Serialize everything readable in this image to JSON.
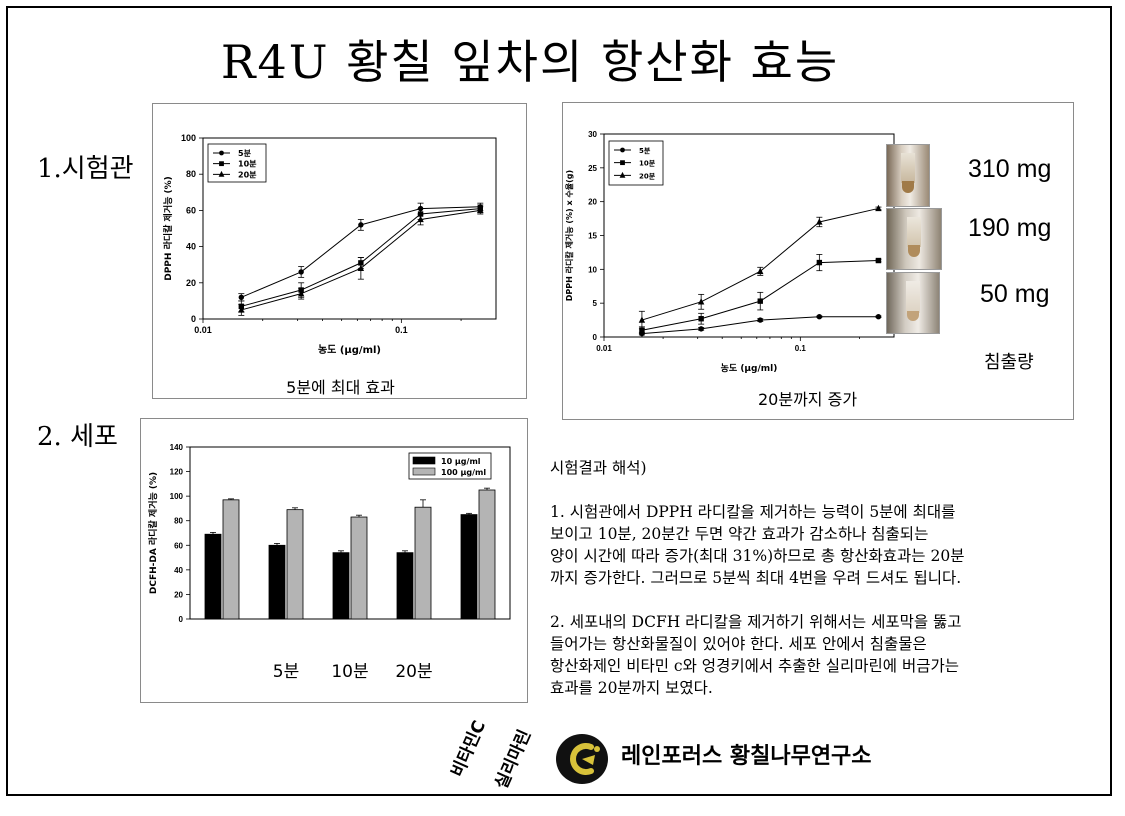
{
  "title": "R4U 황칠 잎차의 항산화 효능",
  "sections": {
    "s1": "1.시험관",
    "s2": "2. 세포"
  },
  "chart_data": [
    {
      "type": "line",
      "id": "dpph_scavenging",
      "xlabel": "농도 (μg/ml)",
      "ylabel": "DPPH 라디칼 제거능 (%)",
      "xscale": "log",
      "xlim": [
        0.01,
        0.3
      ],
      "ylim": [
        0,
        100
      ],
      "x_ticks": [
        "0.01",
        "0.1"
      ],
      "y_ticks": [
        "0",
        "20",
        "40",
        "60",
        "80",
        "100"
      ],
      "legend": "top-left",
      "x": [
        0.0156,
        0.03125,
        0.0625,
        0.125,
        0.25
      ],
      "series": [
        {
          "name": "5분",
          "marker": "circle",
          "values": [
            12,
            26,
            52,
            61,
            62
          ],
          "errors": [
            2,
            3,
            3,
            3,
            2
          ]
        },
        {
          "name": "10분",
          "marker": "square",
          "values": [
            7,
            16,
            31,
            58,
            61
          ],
          "errors": [
            3,
            4,
            3,
            3,
            2
          ]
        },
        {
          "name": "20분",
          "marker": "triangle",
          "values": [
            5,
            14,
            28,
            55,
            60
          ],
          "errors": [
            3,
            3,
            6,
            3,
            2
          ]
        }
      ],
      "caption": "5분에 최대 효과"
    },
    {
      "type": "line",
      "id": "dpph_cumulative",
      "xlabel": "농도 (μg/ml)",
      "ylabel": "DPPH 라디칼 제거능 (%) x 수율(g)",
      "xscale": "log",
      "xlim": [
        0.01,
        0.3
      ],
      "ylim": [
        0,
        30
      ],
      "x_ticks": [
        "0.01",
        "0.1"
      ],
      "y_ticks": [
        "0",
        "5",
        "10",
        "15",
        "20",
        "25",
        "30"
      ],
      "legend": "top-left",
      "x": [
        0.0156,
        0.03125,
        0.0625,
        0.125,
        0.25
      ],
      "series": [
        {
          "name": "5분",
          "marker": "circle",
          "values": [
            0.5,
            1.2,
            2.5,
            3,
            3
          ],
          "errors": [
            0.2,
            0.2,
            0.2,
            0.1,
            0.1
          ]
        },
        {
          "name": "10분",
          "marker": "square",
          "values": [
            1,
            2.7,
            5.3,
            11,
            11.3
          ],
          "errors": [
            0.5,
            0.8,
            1.3,
            1.2,
            0.2
          ]
        },
        {
          "name": "20분",
          "marker": "triangle",
          "values": [
            2.5,
            5.2,
            9.7,
            17,
            19
          ],
          "errors": [
            1.3,
            1.1,
            0.6,
            0.7,
            0.2
          ]
        }
      ],
      "caption": "20분까지 증가"
    },
    {
      "type": "bar",
      "id": "dcfh_cell",
      "ylabel": "DCFH-DA 라디칼 제거능 (%)",
      "ylim": [
        0,
        140
      ],
      "y_ticks": [
        "0",
        "20",
        "40",
        "60",
        "80",
        "100",
        "120",
        "140"
      ],
      "legend": "top-right",
      "categories": [
        "비타민C",
        "5분",
        "10분",
        "20분",
        "실리마린"
      ],
      "visible_category_labels": [
        "5분",
        "10분",
        "20분"
      ],
      "series": [
        {
          "name": "10 μg/ml",
          "color": "#000000",
          "values": [
            69,
            60,
            54,
            54,
            85
          ],
          "errors": [
            1.5,
            1.5,
            1.5,
            1.5,
            1
          ]
        },
        {
          "name": "100 μg/ml",
          "color": "#b4b4b4",
          "values": [
            97,
            89,
            83,
            91,
            105
          ],
          "errors": [
            0.8,
            1.5,
            1.5,
            6,
            1.5
          ]
        }
      ]
    }
  ],
  "extraction": {
    "amounts": [
      "310 mg",
      "190 mg",
      "50 mg"
    ],
    "label": "침출량"
  },
  "interpretation": {
    "heading": "시험결과 해석)",
    "p1": [
      "1. 시험관에서 DPPH 라디칼을 제거하는 능력이 5분에 최대를",
      "보이고 10분, 20분간 두면 약간 효과가 감소하나 침출되는",
      "양이 시간에 따라 증가(최대 31%)하므로 총 항산화효과는 20분",
      "까지 증가한다. 그러므로 5분씩 최대 4번을 우려 드셔도 됩니다."
    ],
    "p2": [
      "2. 세포내의 DCFH 라디칼을 제거하기 위해서는 세포막을 뚫고",
      "들어가는 항산화물질이 있어야 한다. 세포 안에서 침출물은",
      "항산화제인 비타민 c와 엉경키에서 추출한 실리마린에 버금가는",
      "효과를 20분까지 보였다."
    ]
  },
  "rotated_labels": [
    "비타민C",
    "실리마린"
  ],
  "footer": {
    "org": "레인포러스 황칠나무연구소"
  }
}
